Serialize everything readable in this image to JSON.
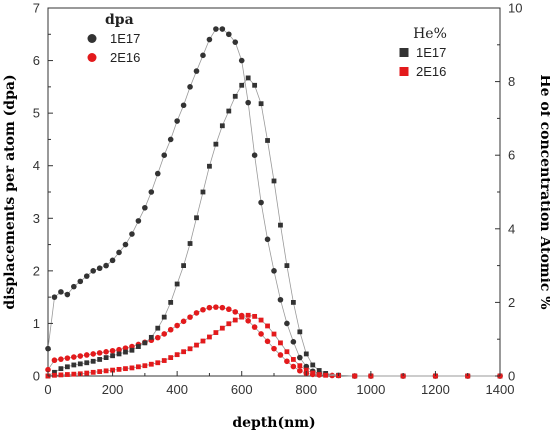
{
  "chart_data": {
    "type": "scatter",
    "xlabel": "depth(nm)",
    "ylabel_left": "displacements per atom (dpa)",
    "ylabel_right": "He of concentration Atomic %",
    "xlim": [
      0,
      1400
    ],
    "ylim_left": [
      0,
      7
    ],
    "ylim_right": [
      0,
      10
    ],
    "x_ticks": [
      0,
      200,
      400,
      600,
      800,
      1000,
      1200,
      1400
    ],
    "y_left_ticks": [
      0,
      1,
      2,
      3,
      4,
      5,
      6,
      7
    ],
    "y_right_ticks": [
      0,
      2,
      4,
      6,
      8,
      10
    ],
    "grid": false,
    "legends": [
      {
        "title": "dpa",
        "position": "top-left",
        "items": [
          "1E17",
          "2E16"
        ]
      },
      {
        "title": "He%",
        "position": "top-right",
        "items": [
          "1E17",
          "2E16"
        ]
      }
    ],
    "series": [
      {
        "name": "1E17",
        "group": "dpa",
        "axis": "left",
        "marker": "circle",
        "color": "#333333",
        "points": [
          [
            0,
            0.52
          ],
          [
            20,
            1.5
          ],
          [
            40,
            1.6
          ],
          [
            60,
            1.55
          ],
          [
            80,
            1.7
          ],
          [
            100,
            1.8
          ],
          [
            120,
            1.9
          ],
          [
            140,
            2.0
          ],
          [
            160,
            2.05
          ],
          [
            180,
            2.1
          ],
          [
            200,
            2.2
          ],
          [
            220,
            2.35
          ],
          [
            240,
            2.5
          ],
          [
            260,
            2.7
          ],
          [
            280,
            2.95
          ],
          [
            300,
            3.2
          ],
          [
            320,
            3.5
          ],
          [
            340,
            3.85
          ],
          [
            360,
            4.2
          ],
          [
            380,
            4.5
          ],
          [
            400,
            4.85
          ],
          [
            420,
            5.15
          ],
          [
            440,
            5.5
          ],
          [
            460,
            5.8
          ],
          [
            480,
            6.1
          ],
          [
            500,
            6.4
          ],
          [
            520,
            6.6
          ],
          [
            540,
            6.6
          ],
          [
            560,
            6.5
          ],
          [
            580,
            6.35
          ],
          [
            600,
            6.0
          ],
          [
            620,
            5.2
          ],
          [
            640,
            4.2
          ],
          [
            660,
            3.3
          ],
          [
            680,
            2.6
          ],
          [
            700,
            2.0
          ],
          [
            720,
            1.45
          ],
          [
            740,
            1.0
          ],
          [
            760,
            0.65
          ],
          [
            780,
            0.35
          ],
          [
            800,
            0.18
          ],
          [
            820,
            0.09
          ],
          [
            840,
            0.05
          ],
          [
            860,
            0.03
          ],
          [
            900,
            0.01
          ],
          [
            950,
            0.0
          ],
          [
            1000,
            0.0
          ],
          [
            1100,
            0.0
          ],
          [
            1200,
            0.0
          ],
          [
            1300,
            0.0
          ],
          [
            1400,
            0.0
          ]
        ]
      },
      {
        "name": "2E16",
        "group": "dpa",
        "axis": "left",
        "marker": "circle",
        "color": "#e31a1c",
        "points": [
          [
            0,
            0.12
          ],
          [
            20,
            0.3
          ],
          [
            40,
            0.32
          ],
          [
            60,
            0.34
          ],
          [
            80,
            0.36
          ],
          [
            100,
            0.38
          ],
          [
            120,
            0.4
          ],
          [
            140,
            0.42
          ],
          [
            160,
            0.44
          ],
          [
            180,
            0.46
          ],
          [
            200,
            0.48
          ],
          [
            220,
            0.5
          ],
          [
            240,
            0.53
          ],
          [
            260,
            0.56
          ],
          [
            280,
            0.6
          ],
          [
            300,
            0.64
          ],
          [
            320,
            0.68
          ],
          [
            340,
            0.73
          ],
          [
            360,
            0.8
          ],
          [
            380,
            0.88
          ],
          [
            400,
            0.96
          ],
          [
            420,
            1.04
          ],
          [
            440,
            1.12
          ],
          [
            460,
            1.2
          ],
          [
            480,
            1.26
          ],
          [
            500,
            1.3
          ],
          [
            520,
            1.31
          ],
          [
            540,
            1.3
          ],
          [
            560,
            1.27
          ],
          [
            580,
            1.22
          ],
          [
            600,
            1.15
          ],
          [
            620,
            1.05
          ],
          [
            640,
            0.93
          ],
          [
            660,
            0.8
          ],
          [
            680,
            0.66
          ],
          [
            700,
            0.52
          ],
          [
            720,
            0.4
          ],
          [
            740,
            0.28
          ],
          [
            760,
            0.18
          ],
          [
            780,
            0.1
          ],
          [
            800,
            0.05
          ],
          [
            820,
            0.03
          ],
          [
            840,
            0.02
          ],
          [
            880,
            0.01
          ],
          [
            950,
            0.0
          ],
          [
            1000,
            0.0
          ],
          [
            1100,
            0.0
          ],
          [
            1200,
            0.0
          ],
          [
            1300,
            0.0
          ],
          [
            1400,
            0.0
          ]
        ]
      },
      {
        "name": "1E17",
        "group": "He%",
        "axis": "right",
        "marker": "square",
        "color": "#333333",
        "points": [
          [
            0,
            0.0
          ],
          [
            20,
            0.1
          ],
          [
            40,
            0.2
          ],
          [
            60,
            0.25
          ],
          [
            80,
            0.3
          ],
          [
            100,
            0.33
          ],
          [
            120,
            0.36
          ],
          [
            140,
            0.4
          ],
          [
            160,
            0.45
          ],
          [
            180,
            0.5
          ],
          [
            200,
            0.55
          ],
          [
            220,
            0.6
          ],
          [
            240,
            0.65
          ],
          [
            260,
            0.7
          ],
          [
            280,
            0.8
          ],
          [
            300,
            0.9
          ],
          [
            320,
            1.05
          ],
          [
            340,
            1.3
          ],
          [
            360,
            1.6
          ],
          [
            380,
            2.0
          ],
          [
            400,
            2.5
          ],
          [
            420,
            3.0
          ],
          [
            440,
            3.6
          ],
          [
            460,
            4.3
          ],
          [
            480,
            5.0
          ],
          [
            500,
            5.7
          ],
          [
            520,
            6.3
          ],
          [
            540,
            6.8
          ],
          [
            560,
            7.2
          ],
          [
            580,
            7.6
          ],
          [
            600,
            7.9
          ],
          [
            620,
            8.1
          ],
          [
            640,
            7.9
          ],
          [
            660,
            7.4
          ],
          [
            680,
            6.4
          ],
          [
            700,
            5.3
          ],
          [
            720,
            4.1
          ],
          [
            740,
            3.0
          ],
          [
            760,
            2.0
          ],
          [
            780,
            1.2
          ],
          [
            800,
            0.6
          ],
          [
            820,
            0.3
          ],
          [
            840,
            0.15
          ],
          [
            860,
            0.07
          ],
          [
            900,
            0.02
          ],
          [
            950,
            0.0
          ],
          [
            1000,
            0.0
          ],
          [
            1100,
            0.0
          ],
          [
            1200,
            0.0
          ],
          [
            1300,
            0.0
          ],
          [
            1400,
            0.0
          ]
        ]
      },
      {
        "name": "2E16",
        "group": "He%",
        "axis": "right",
        "marker": "square",
        "color": "#e31a1c",
        "points": [
          [
            0,
            0.0
          ],
          [
            20,
            0.02
          ],
          [
            40,
            0.03
          ],
          [
            60,
            0.04
          ],
          [
            80,
            0.05
          ],
          [
            100,
            0.06
          ],
          [
            120,
            0.08
          ],
          [
            140,
            0.1
          ],
          [
            160,
            0.12
          ],
          [
            180,
            0.14
          ],
          [
            200,
            0.16
          ],
          [
            220,
            0.18
          ],
          [
            240,
            0.2
          ],
          [
            260,
            0.22
          ],
          [
            280,
            0.25
          ],
          [
            300,
            0.28
          ],
          [
            320,
            0.32
          ],
          [
            340,
            0.36
          ],
          [
            360,
            0.42
          ],
          [
            380,
            0.5
          ],
          [
            400,
            0.58
          ],
          [
            420,
            0.66
          ],
          [
            440,
            0.74
          ],
          [
            460,
            0.84
          ],
          [
            480,
            0.95
          ],
          [
            500,
            1.06
          ],
          [
            520,
            1.18
          ],
          [
            540,
            1.3
          ],
          [
            560,
            1.42
          ],
          [
            580,
            1.52
          ],
          [
            600,
            1.6
          ],
          [
            620,
            1.65
          ],
          [
            640,
            1.62
          ],
          [
            660,
            1.52
          ],
          [
            680,
            1.36
          ],
          [
            700,
            1.14
          ],
          [
            720,
            0.9
          ],
          [
            740,
            0.66
          ],
          [
            760,
            0.45
          ],
          [
            780,
            0.28
          ],
          [
            800,
            0.16
          ],
          [
            820,
            0.08
          ],
          [
            840,
            0.04
          ],
          [
            860,
            0.02
          ],
          [
            900,
            0.01
          ],
          [
            950,
            0.0
          ],
          [
            1000,
            0.0
          ],
          [
            1100,
            0.0
          ],
          [
            1200,
            0.0
          ],
          [
            1300,
            0.0
          ],
          [
            1400,
            0.0
          ]
        ]
      }
    ]
  }
}
